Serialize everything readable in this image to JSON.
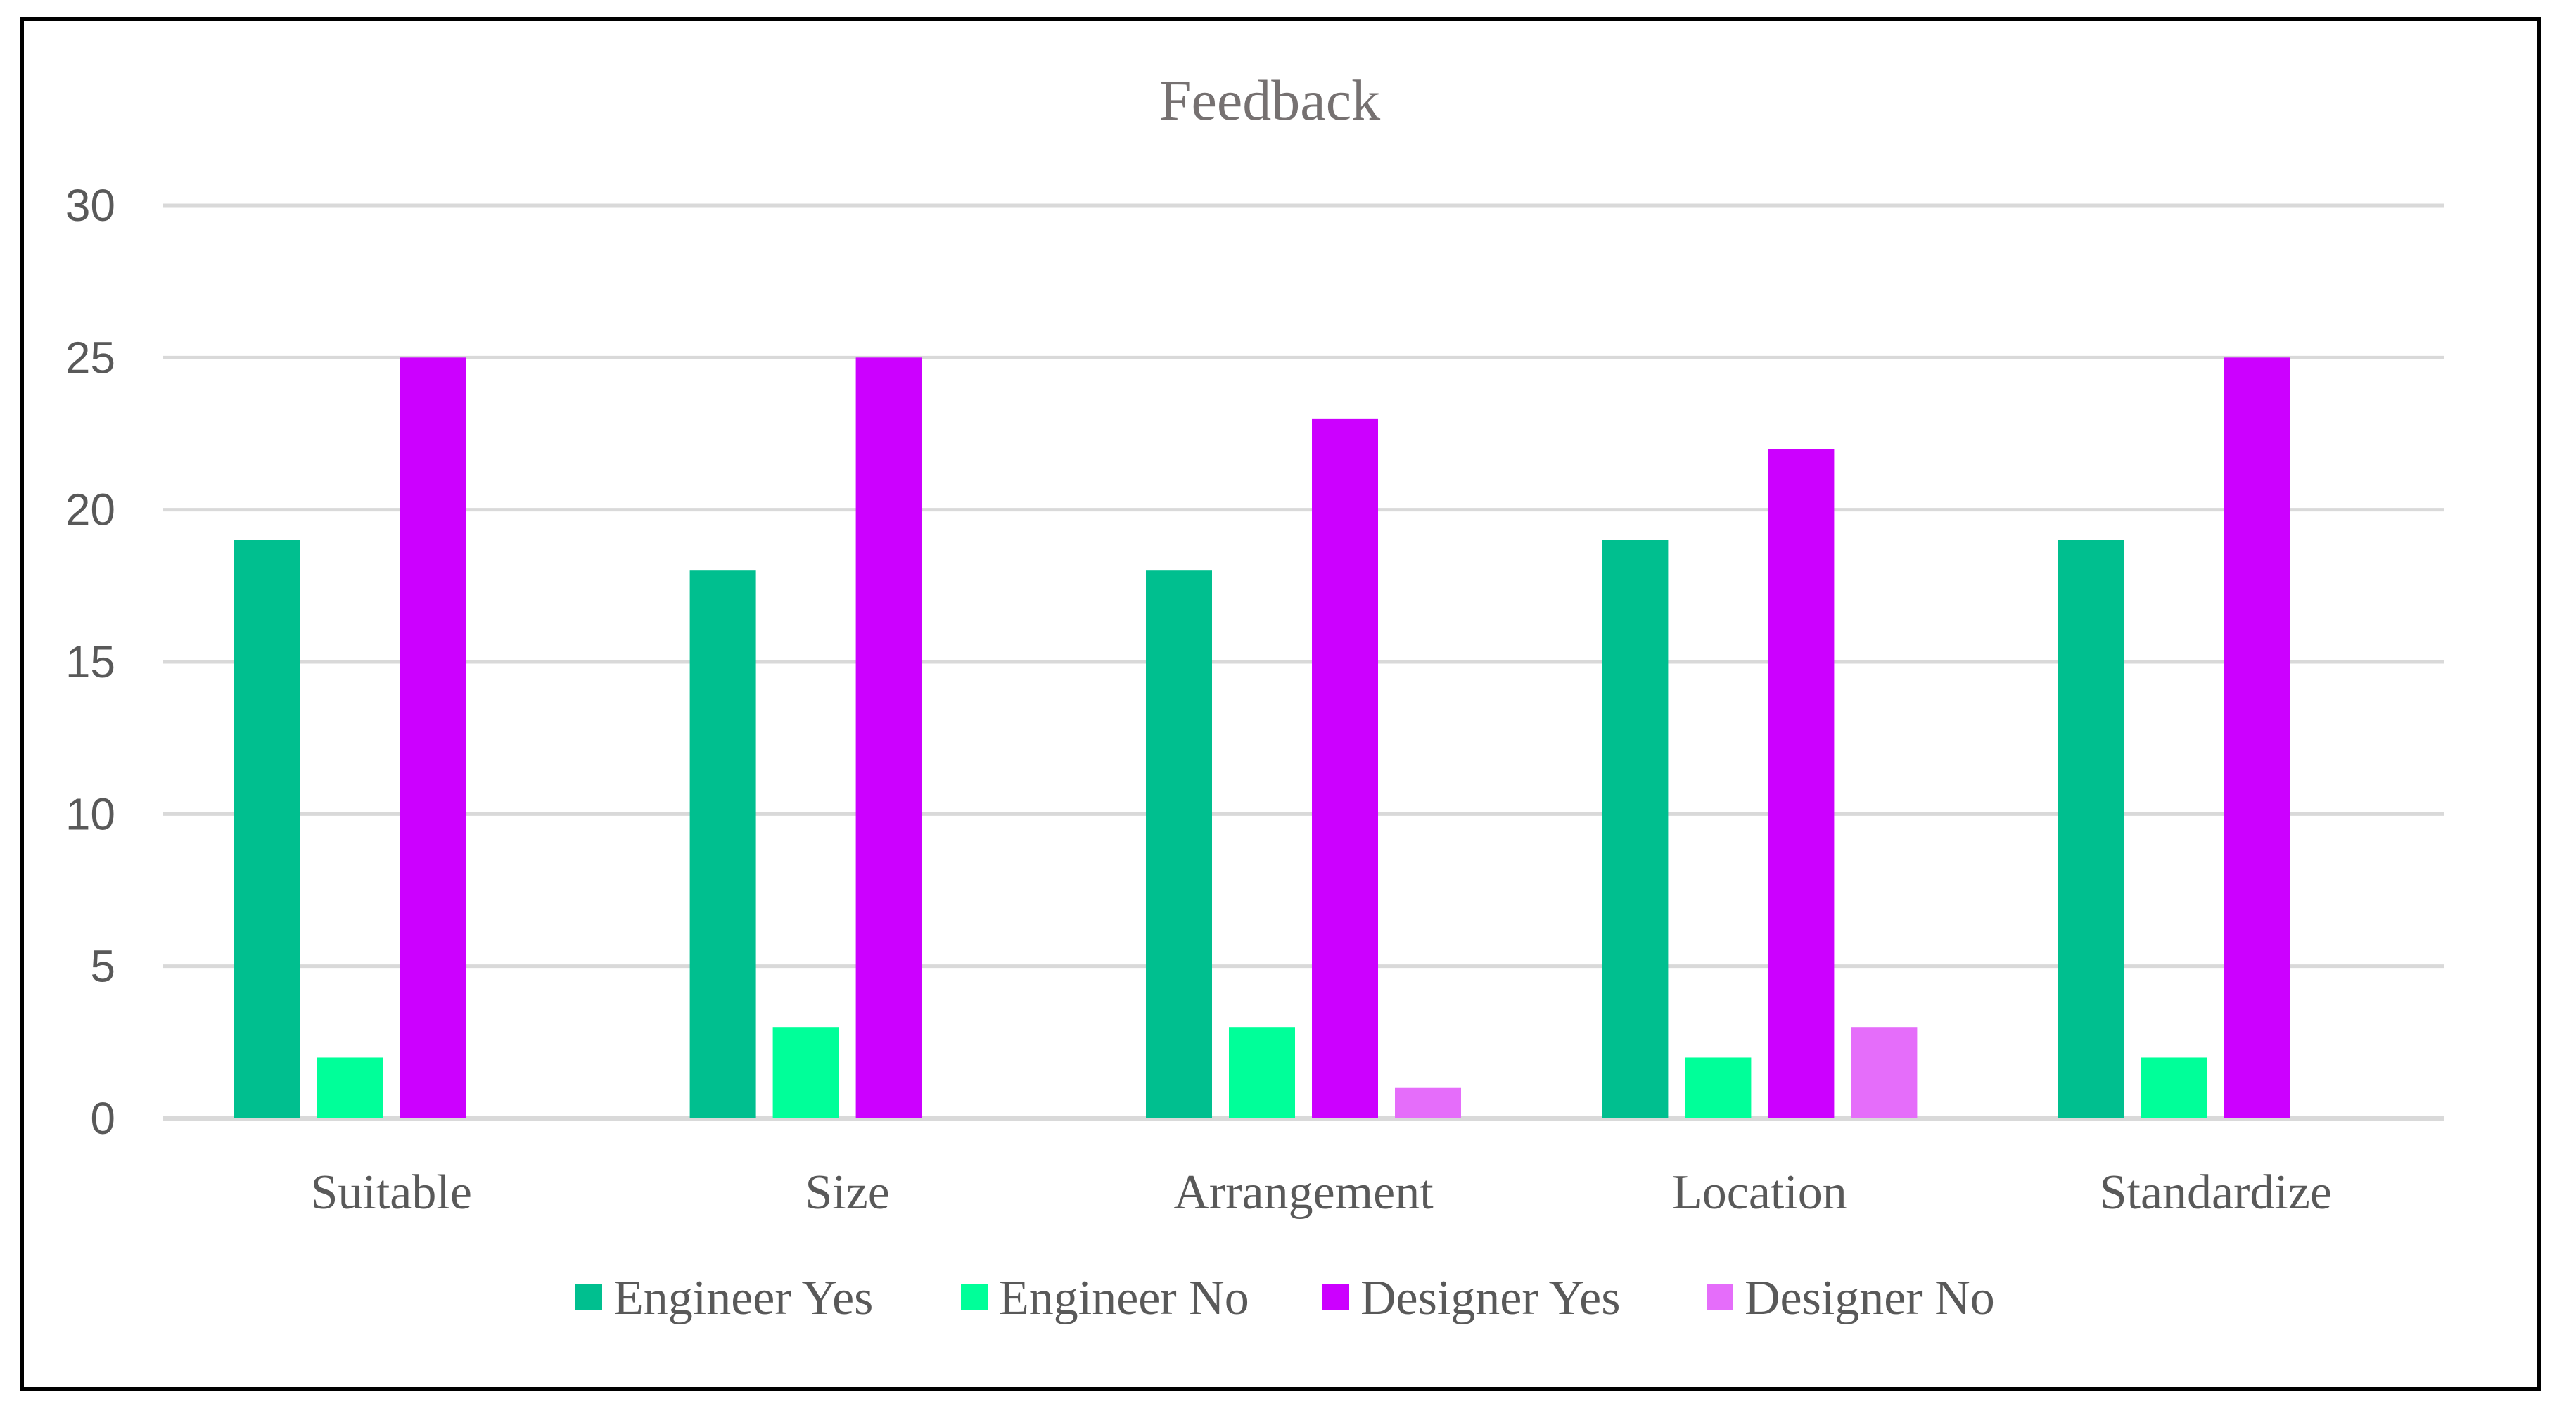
{
  "chart_data": {
    "type": "bar",
    "title": "Feedback",
    "categories": [
      "Suitable",
      "Size",
      "Arrangement",
      "Location",
      "Standardize"
    ],
    "series": [
      {
        "name": "Engineer Yes",
        "color": "#00bf8f",
        "values": [
          19,
          18,
          18,
          19,
          19
        ]
      },
      {
        "name": "Engineer No",
        "color": "#00ff99",
        "values": [
          2,
          3,
          3,
          2,
          2
        ]
      },
      {
        "name": "Designer Yes",
        "color": "#cc00ff",
        "values": [
          25,
          25,
          23,
          22,
          25
        ]
      },
      {
        "name": "Designer No",
        "color": "#e56dfa",
        "values": [
          0,
          0,
          1,
          3,
          0
        ]
      }
    ],
    "ylim": [
      0,
      30
    ],
    "yticks": [
      0,
      5,
      10,
      15,
      20,
      25,
      30
    ],
    "xlabel": "",
    "ylabel": "",
    "grid": true,
    "legend": "bottom"
  }
}
